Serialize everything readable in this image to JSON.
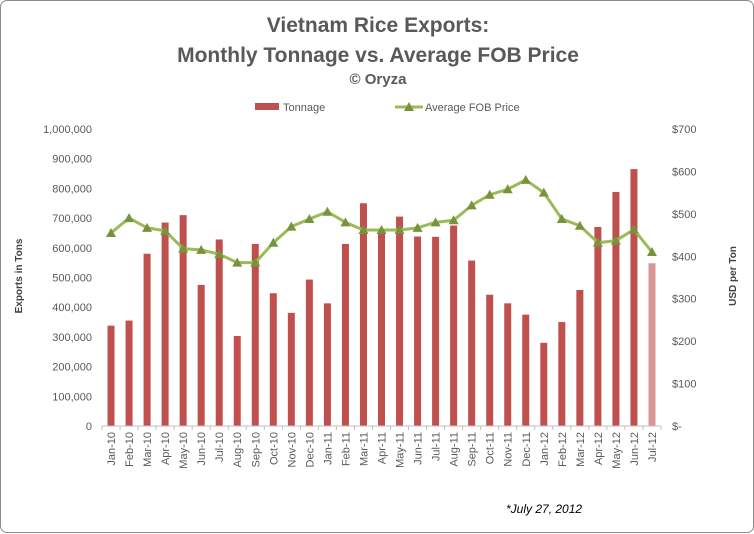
{
  "chart_data": {
    "type": "bar+line",
    "title_line1": "Vietnam Rice Exports:",
    "title_line2": "Monthly Tonnage vs. Average FOB Price",
    "copyright": "© Oryza",
    "ylabel_left": "Exports in Tons",
    "ylabel_right": "USD per Ton",
    "footnote": "*July 27, 2012",
    "legend_placement": "top",
    "colors": {
      "bar": "#c0504d",
      "bar_highlight": "#d99694",
      "line": "#9bbb59",
      "marker": "#77933c"
    },
    "categories": [
      "Jan-10",
      "Feb-10",
      "Mar-10",
      "Apr-10",
      "May-10",
      "Jun-10",
      "Jul-10",
      "Aug-10",
      "Sep-10",
      "Oct-10",
      "Nov-10",
      "Dec-10",
      "Jan-11",
      "Feb-11",
      "Mar-11",
      "Apr-11",
      "May-11",
      "Jun-11",
      "Jul-11",
      "Aug-11",
      "Sep-11",
      "Oct-11",
      "Nov-11",
      "Dec-11",
      "Jan-12",
      "Feb-12",
      "Mar-12",
      "Apr-12",
      "May-12",
      "Jun-12",
      "Jul-12"
    ],
    "left_axis": {
      "ylim": [
        0,
        1000000
      ],
      "ticks": [
        0,
        100000,
        200000,
        300000,
        400000,
        500000,
        600000,
        700000,
        800000,
        900000,
        1000000
      ],
      "tick_labels": [
        "0",
        "100,000",
        "200,000",
        "300,000",
        "400,000",
        "500,000",
        "600,000",
        "700,000",
        "800,000",
        "900,000",
        "1,000,000"
      ]
    },
    "right_axis": {
      "ylim": [
        0,
        700
      ],
      "ticks": [
        0,
        100,
        200,
        300,
        400,
        500,
        600,
        700
      ],
      "tick_labels": [
        "$-",
        "$100",
        "$200",
        "$300",
        "$400",
        "$500",
        "$600",
        "$700"
      ]
    },
    "series": [
      {
        "name": "Tonnage",
        "type": "bar",
        "axis": "left",
        "values": [
          338000,
          355000,
          580000,
          685000,
          710000,
          475000,
          628000,
          303000,
          613000,
          447000,
          381000,
          493000,
          413000,
          613000,
          750000,
          655000,
          705000,
          638000,
          637000,
          675000,
          557000,
          442000,
          413000,
          375000,
          280000,
          350000,
          458000,
          670000,
          788000,
          865000,
          548000
        ]
      },
      {
        "name": "Average FOB Price",
        "type": "line",
        "axis": "right",
        "values": [
          455,
          490,
          467,
          460,
          418,
          415,
          405,
          385,
          385,
          432,
          470,
          488,
          505,
          480,
          462,
          462,
          462,
          467,
          480,
          485,
          520,
          545,
          558,
          580,
          550,
          488,
          472,
          432,
          437,
          463,
          410
        ]
      }
    ]
  }
}
